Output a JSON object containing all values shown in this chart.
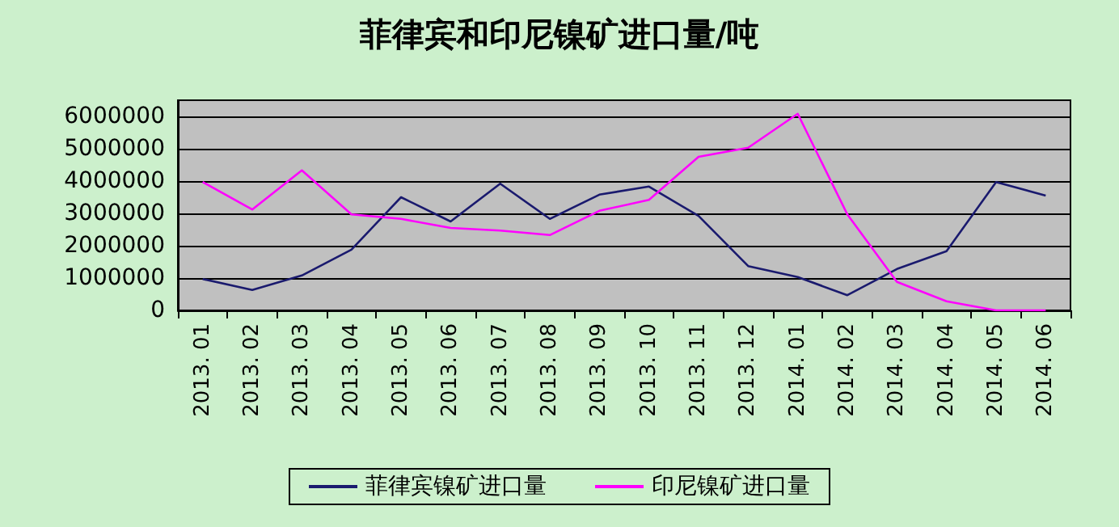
{
  "chart_data": {
    "type": "line",
    "title": "菲律宾和印尼镍矿进口量/吨",
    "categories": [
      "2013. 01",
      "2013. 02",
      "2013. 03",
      "2013. 04",
      "2013. 05",
      "2013. 06",
      "2013. 07",
      "2013. 08",
      "2013. 09",
      "2013. 10",
      "2013. 11",
      "2013. 12",
      "2014. 01",
      "2014. 02",
      "2014. 03",
      "2014. 04",
      "2014. 05",
      "2014. 06"
    ],
    "series": [
      {
        "name": "菲律宾镍矿进口量",
        "color": "#1a1a6e",
        "values": [
          970000,
          630000,
          1080000,
          1880000,
          3500000,
          2750000,
          3920000,
          2830000,
          3580000,
          3830000,
          2920000,
          1370000,
          1030000,
          470000,
          1280000,
          1830000,
          3970000,
          3550000
        ]
      },
      {
        "name": "印尼镍矿进口量",
        "color": "#ff00ff",
        "values": [
          3970000,
          3120000,
          4330000,
          2970000,
          2830000,
          2550000,
          2470000,
          2330000,
          3080000,
          3420000,
          4750000,
          5030000,
          6080000,
          2970000,
          880000,
          280000,
          0,
          0
        ]
      }
    ],
    "ylim": [
      0,
      6500000
    ],
    "yticks": [
      0,
      1000000,
      2000000,
      3000000,
      4000000,
      5000000,
      6000000
    ],
    "grid": "y",
    "legend": "bottom",
    "marker": "none",
    "line_style": "solid"
  }
}
